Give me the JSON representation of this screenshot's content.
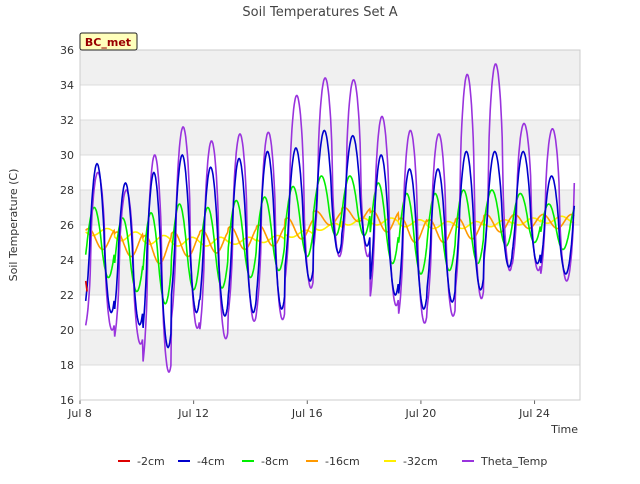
{
  "chart_data": {
    "type": "line",
    "title": "Soil Temperatures Set A",
    "xlabel": "Time",
    "ylabel": "Soil Temperature (C)",
    "badge": "BC_met",
    "xlim": [
      8.0,
      25.6
    ],
    "ylim": [
      16,
      36
    ],
    "yticks": [
      16,
      18,
      20,
      22,
      24,
      26,
      28,
      30,
      32,
      34,
      36
    ],
    "xticks": [
      {
        "value": 8,
        "label": "Jul 8"
      },
      {
        "value": 12,
        "label": "Jul 12"
      },
      {
        "value": 16,
        "label": "Jul 16"
      },
      {
        "value": 20,
        "label": "Jul 20"
      },
      {
        "value": 24,
        "label": "Jul 24"
      }
    ],
    "grid": true,
    "legend_position": "bottom",
    "colors": {
      "-2cm": "#dd0000",
      "-4cm": "#0000cc",
      "-8cm": "#00ee00",
      "-16cm": "#ff9900",
      "-32cm": "#ffee00",
      "Theta_Temp": "#9933dd",
      "badge_bg": "#ffffbb",
      "badge_text": "#990000",
      "band": "#f0f0f0"
    },
    "day_span": [
      8.2,
      25.4
    ],
    "series": [
      {
        "name": "-2cm",
        "note_visible_only_at_start": true,
        "x": [
          8.2,
          8.25
        ],
        "y": [
          22.8,
          22.2
        ]
      },
      {
        "name": "-4cm",
        "daily_min": [
          21.0,
          20.3,
          19.0,
          21.0,
          20.8,
          21.0,
          21.2,
          22.8,
          24.4,
          24.8,
          22.0,
          21.2,
          21.6,
          22.3,
          23.6,
          23.8,
          23.2
        ],
        "daily_max": [
          29.5,
          28.4,
          29.0,
          30.0,
          29.3,
          29.8,
          30.2,
          30.4,
          31.4,
          31.1,
          30.0,
          29.2,
          29.2,
          30.2,
          30.2,
          30.2,
          28.8
        ]
      },
      {
        "name": "-8cm",
        "daily_min": [
          23.0,
          22.2,
          21.5,
          22.3,
          22.4,
          23.0,
          23.4,
          24.2,
          25.4,
          25.4,
          23.8,
          23.2,
          23.4,
          23.8,
          24.8,
          25.0,
          24.6
        ],
        "daily_max": [
          27.0,
          26.4,
          26.7,
          27.2,
          27.0,
          27.4,
          27.6,
          28.2,
          28.8,
          28.8,
          28.4,
          27.8,
          27.8,
          28.0,
          28.0,
          27.8,
          27.2
        ]
      },
      {
        "name": "-16cm",
        "daily_min": [
          24.6,
          24.2,
          23.8,
          24.2,
          24.4,
          24.6,
          24.8,
          25.2,
          26.0,
          26.2,
          25.6,
          25.0,
          25.0,
          25.2,
          25.6,
          25.8,
          25.8
        ],
        "daily_max": [
          25.8,
          25.6,
          25.4,
          25.6,
          25.7,
          25.9,
          26.0,
          26.4,
          26.8,
          27.0,
          26.8,
          26.4,
          26.3,
          26.4,
          26.6,
          26.6,
          26.6
        ]
      },
      {
        "name": "-32cm",
        "daily_min": [
          25.4,
          25.1,
          24.9,
          24.8,
          24.8,
          24.9,
          25.0,
          25.3,
          25.7,
          26.0,
          26.0,
          25.9,
          25.8,
          25.8,
          25.9,
          26.0,
          26.1
        ],
        "daily_max": [
          25.8,
          25.6,
          25.4,
          25.3,
          25.3,
          25.3,
          25.4,
          25.7,
          26.1,
          26.4,
          26.4,
          26.3,
          26.2,
          26.2,
          26.3,
          26.4,
          26.5
        ]
      },
      {
        "name": "Theta_Temp",
        "daily_min": [
          20.0,
          19.2,
          17.6,
          20.1,
          19.5,
          20.5,
          20.6,
          22.4,
          24.2,
          24.2,
          21.4,
          20.4,
          20.8,
          21.8,
          23.4,
          23.4,
          22.8
        ],
        "daily_max": [
          29.0,
          28.0,
          30.0,
          31.6,
          30.8,
          31.2,
          31.3,
          33.4,
          34.4,
          34.3,
          32.2,
          31.4,
          31.2,
          34.6,
          35.2,
          31.8,
          31.5
        ]
      }
    ]
  }
}
